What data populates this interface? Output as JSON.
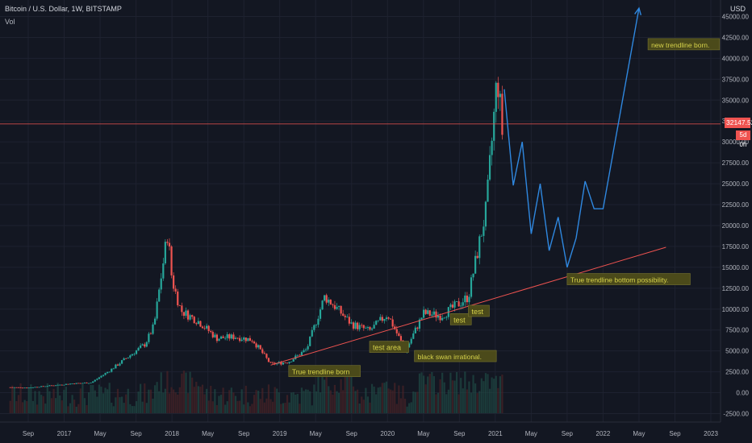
{
  "header": {
    "symbol": "Bitcoin / U.S. Dollar, 1W, BITSTAMP",
    "volume_label": "Vol",
    "currency": "USD"
  },
  "price_marker": {
    "value": "32147.52",
    "countdown": "5d 0h",
    "color": "#ef5350"
  },
  "colors": {
    "background": "#131722",
    "up": "#26a69a",
    "down": "#ef5350",
    "projection": "#2f88e0",
    "trendline": "#ef5350",
    "note_bg": "#4b4a1a",
    "note_text": "#d6d24a"
  },
  "chart_data": {
    "type": "line",
    "y_axis": {
      "scale": "linear",
      "ylim": [
        -2800,
        46300
      ],
      "ticks": [
        "45000.00",
        "42500.00",
        "40000.00",
        "37500.00",
        "35000.00",
        "32500.00",
        "30000.00",
        "27500.00",
        "25000.00",
        "22500.00",
        "20000.00",
        "17500.00",
        "15000.00",
        "12500.00",
        "10000.00",
        "7500.00",
        "5000.00",
        "2500.00",
        "0.00",
        "-2500.00"
      ]
    },
    "x_axis": {
      "labels": [
        "Sep",
        "2017",
        "May",
        "Sep",
        "2018",
        "May",
        "Sep",
        "2019",
        "May",
        "Sep",
        "2020",
        "May",
        "Sep",
        "2021",
        "May",
        "Sep",
        "2022",
        "May",
        "Sep",
        "2023"
      ]
    },
    "grid": true,
    "price_series": {
      "name": "",
      "x": [
        "2016-07",
        "2016-09",
        "2016-12",
        "2017-02",
        "2017-04",
        "2017-06",
        "2017-08",
        "2017-10",
        "2017-11",
        "2017-12-17",
        "2018-01",
        "2018-02",
        "2018-04",
        "2018-06",
        "2018-08",
        "2018-10",
        "2018-12",
        "2019-02",
        "2019-04",
        "2019-06",
        "2019-07",
        "2019-09",
        "2019-11",
        "2020-01",
        "2020-03",
        "2020-05",
        "2020-07",
        "2020-09",
        "2020-10",
        "2020-12",
        "2021-01-08",
        "2021-01-25",
        "2021-02"
      ],
      "values": [
        650,
        600,
        900,
        1100,
        1200,
        2600,
        4200,
        5800,
        8000,
        19200,
        13500,
        9800,
        8500,
        6500,
        6700,
        6300,
        3400,
        3700,
        5200,
        11500,
        10500,
        8200,
        7400,
        9400,
        5000,
        9500,
        9200,
        10700,
        11500,
        22000,
        38000,
        31000,
        33000
      ]
    },
    "projection": {
      "name": "",
      "x": [
        "2021-02",
        "2021-03",
        "2021-04",
        "2021-05",
        "2021-06",
        "2021-07",
        "2021-08",
        "2021-09",
        "2021-10",
        "2021-11",
        "2021-12",
        "2022-01",
        "2022-05"
      ],
      "values": [
        36300,
        24800,
        30000,
        19000,
        25000,
        17000,
        21000,
        15000,
        18500,
        25300,
        22000,
        22000,
        46000
      ]
    },
    "trendline": {
      "name": "",
      "from": [
        "2018-12",
        3300
      ],
      "to": [
        "2022-08",
        17400
      ]
    },
    "annotations": [
      {
        "text": "new trendline born.",
        "x": "2022-06",
        "y": 41300
      },
      {
        "text": "True trendline bottom possibility.",
        "x": "2021-09",
        "y": 13200
      },
      {
        "text": "True trendline born",
        "x": "2019-02",
        "y": 2200
      },
      {
        "text": "test area",
        "x": "2019-11",
        "y": 5100
      },
      {
        "text": "black swan irrational.",
        "x": "2020-04",
        "y": 4000
      },
      {
        "text": "test",
        "x": "2020-08",
        "y": 8400
      },
      {
        "text": "test",
        "x": "2020-10",
        "y": 9400
      }
    ]
  }
}
